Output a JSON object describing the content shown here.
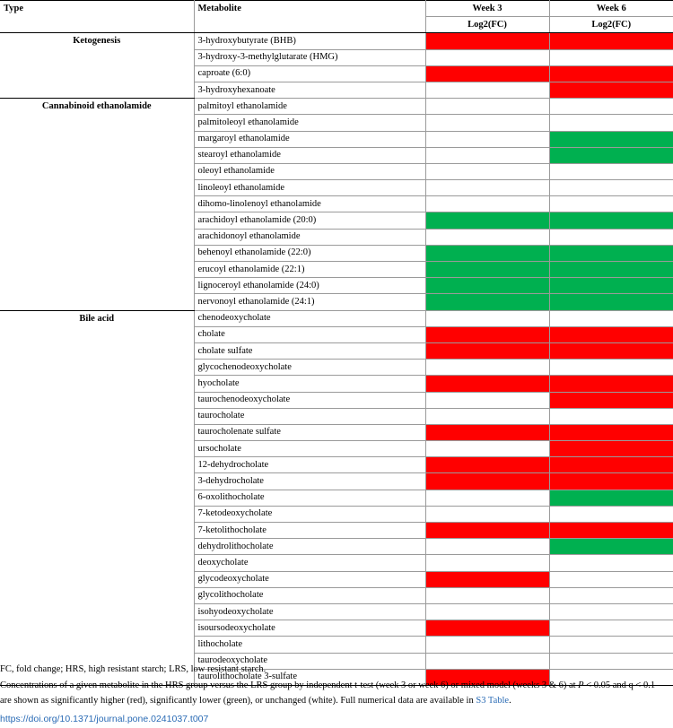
{
  "headers": {
    "type": "Type",
    "metabolite": "Metabolite",
    "week3": "Week 3",
    "week6": "Week 6",
    "log2fc_w3": "Log2(FC)",
    "log2fc_w6": "Log2(FC)"
  },
  "colors": {
    "red": "#ff0000",
    "green": "#00b050",
    "white": "#ffffff"
  },
  "groups": [
    {
      "name": "Ketogenesis",
      "rows": [
        {
          "metabolite": "3-hydroxybutyrate (BHB)",
          "week3": "red",
          "week6": "red"
        },
        {
          "metabolite": "3-hydroxy-3-methylglutarate (HMG)",
          "week3": "white",
          "week6": "white"
        },
        {
          "metabolite": "caproate (6:0)",
          "week3": "red",
          "week6": "red"
        },
        {
          "metabolite": "3-hydroxyhexanoate",
          "week3": "white",
          "week6": "red"
        }
      ]
    },
    {
      "name": "Cannabinoid ethanolamide",
      "rows": [
        {
          "metabolite": "palmitoyl ethanolamide",
          "week3": "white",
          "week6": "white"
        },
        {
          "metabolite": "palmitoleoyl ethanolamide",
          "week3": "white",
          "week6": "white"
        },
        {
          "metabolite": "margaroyl ethanolamide",
          "week3": "white",
          "week6": "green"
        },
        {
          "metabolite": "stearoyl ethanolamide",
          "week3": "white",
          "week6": "green"
        },
        {
          "metabolite": "oleoyl ethanolamide",
          "week3": "white",
          "week6": "white"
        },
        {
          "metabolite": "linoleoyl ethanolamide",
          "week3": "white",
          "week6": "white"
        },
        {
          "metabolite": "dihomo-linolenoyl ethanolamide",
          "week3": "white",
          "week6": "white"
        },
        {
          "metabolite": "arachidoyl ethanolamide (20:0)",
          "week3": "green",
          "week6": "green"
        },
        {
          "metabolite": "arachidonoyl ethanolamide",
          "week3": "white",
          "week6": "white"
        },
        {
          "metabolite": "behenoyl ethanolamide (22:0)",
          "week3": "green",
          "week6": "green"
        },
        {
          "metabolite": "erucoyl ethanolamide (22:1)",
          "week3": "green",
          "week6": "green"
        },
        {
          "metabolite": "lignoceroyl ethanolamide (24:0)",
          "week3": "green",
          "week6": "green"
        },
        {
          "metabolite": "nervonoyl ethanolamide (24:1)",
          "week3": "green",
          "week6": "green"
        }
      ]
    },
    {
      "name": "Bile acid",
      "rows": [
        {
          "metabolite": "chenodeoxycholate",
          "week3": "white",
          "week6": "white"
        },
        {
          "metabolite": "cholate",
          "week3": "red",
          "week6": "red"
        },
        {
          "metabolite": "cholate sulfate",
          "week3": "red",
          "week6": "red"
        },
        {
          "metabolite": "glycochenodeoxycholate",
          "week3": "white",
          "week6": "white"
        },
        {
          "metabolite": "hyocholate",
          "week3": "red",
          "week6": "red"
        },
        {
          "metabolite": "taurochenodeoxycholate",
          "week3": "white",
          "week6": "red"
        },
        {
          "metabolite": "taurocholate",
          "week3": "white",
          "week6": "white"
        },
        {
          "metabolite": "taurocholenate sulfate",
          "week3": "red",
          "week6": "red"
        },
        {
          "metabolite": "ursocholate",
          "week3": "white",
          "week6": "red"
        },
        {
          "metabolite": "12-dehydrocholate",
          "week3": "red",
          "week6": "red"
        },
        {
          "metabolite": "3-dehydrocholate",
          "week3": "red",
          "week6": "red"
        },
        {
          "metabolite": "6-oxolithocholate",
          "week3": "white",
          "week6": "green"
        },
        {
          "metabolite": "7-ketodeoxycholate",
          "week3": "white",
          "week6": "white"
        },
        {
          "metabolite": "7-ketolithocholate",
          "week3": "red",
          "week6": "red"
        },
        {
          "metabolite": "dehydrolithocholate",
          "week3": "white",
          "week6": "green"
        },
        {
          "metabolite": "deoxycholate",
          "week3": "white",
          "week6": "white"
        },
        {
          "metabolite": "glycodeoxycholate",
          "week3": "red",
          "week6": "white"
        },
        {
          "metabolite": "glycolithocholate",
          "week3": "white",
          "week6": "white"
        },
        {
          "metabolite": "isohyodeoxycholate",
          "week3": "white",
          "week6": "white"
        },
        {
          "metabolite": "isoursodeoxycholate",
          "week3": "red",
          "week6": "white"
        },
        {
          "metabolite": "lithocholate",
          "week3": "white",
          "week6": "white"
        },
        {
          "metabolite": "taurodeoxycholate",
          "week3": "white",
          "week6": "white"
        },
        {
          "metabolite": "taurolithocholate 3-sulfate",
          "week3": "red",
          "week6": "white"
        }
      ]
    }
  ],
  "footnotes": {
    "abbreviations": "FC, fold change; HRS, high resistant starch; LRS, low resistant starch.",
    "description": "Concentrations of a given metabolite in the HRS group versus the LRS group by independent t-test (week 3 or week 6) or mixed model (weeks 3 & 6) at",
    "p": "P",
    "p_cond": "< 0.05 and",
    "q_cond": "q < 0.1 are shown as significantly higher (red), significantly lower (green), or unchanged (white). Full numerical data are available in",
    "s3_link": "S3 Table",
    "period": "."
  },
  "doi": "https://doi.org/10.1371/journal.pone.0241037.t007"
}
